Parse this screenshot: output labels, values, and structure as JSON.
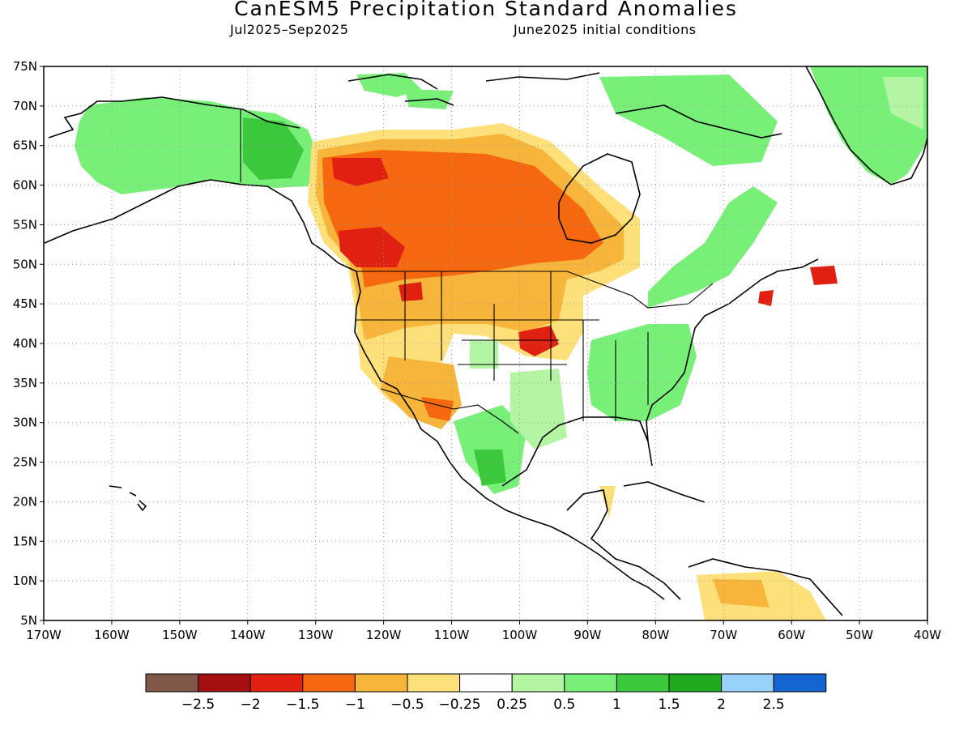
{
  "title": "CanESM5 Precipitation Standard Anomalies",
  "subtitle_left": "Jul2025–Sep2025",
  "subtitle_right": "June2025 initial conditions",
  "map": {
    "lon_range": [
      -170,
      -40
    ],
    "lat_range": [
      5,
      75
    ],
    "lat_ticks": [
      "75N",
      "70N",
      "65N",
      "60N",
      "55N",
      "50N",
      "45N",
      "40N",
      "35N",
      "30N",
      "25N",
      "20N",
      "15N",
      "10N",
      "5N"
    ],
    "lon_ticks": [
      "170W",
      "160W",
      "150W",
      "140W",
      "130W",
      "120W",
      "110W",
      "100W",
      "90W",
      "80W",
      "70W",
      "60W",
      "50W",
      "40W"
    ],
    "grid": "dotted"
  },
  "colorbar": {
    "colors": [
      "#7f5849",
      "#a50f0f",
      "#e02010",
      "#f5680f",
      "#f7b53b",
      "#fde07a",
      "#ffffff",
      "#b4f5a4",
      "#78f078",
      "#3cc83c",
      "#1faa1f",
      "#96d2fa",
      "#1464d2"
    ],
    "labels": [
      "−2.5",
      "−2",
      "−1.5",
      "−1",
      "−0.5",
      "−0.25",
      "0.25",
      "0.5",
      "1",
      "1.5",
      "2",
      "2.5"
    ]
  }
}
